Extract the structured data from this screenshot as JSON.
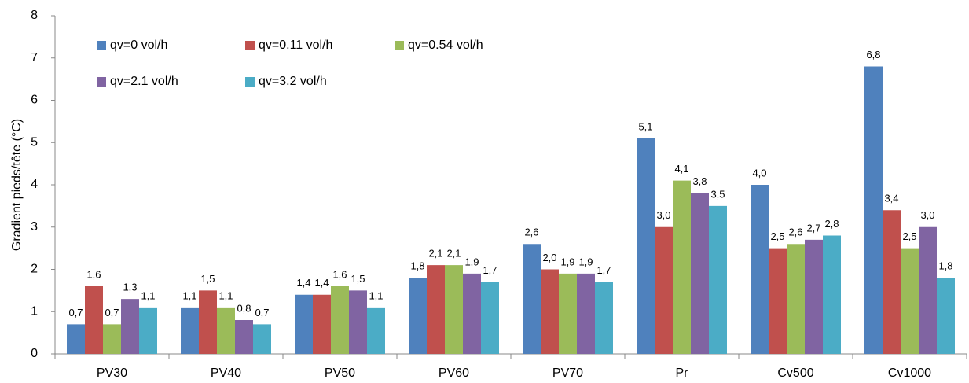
{
  "chart_data": {
    "type": "bar",
    "ylabel": "Gradient pieds/tête (°C)",
    "categories": [
      "PV30",
      "PV40",
      "PV50",
      "PV60",
      "PV70",
      "Pr",
      "Cv500",
      "Cv1000"
    ],
    "series": [
      {
        "name": "qv=0 vol/h",
        "color": "#4f81bd",
        "values": [
          0.7,
          1.1,
          1.4,
          1.8,
          2.6,
          5.1,
          4.0,
          6.8
        ],
        "value_labels": [
          "0,7",
          "1,1",
          "1,4",
          "1,8",
          "2,6",
          "5,1",
          "4,0",
          "6,8"
        ]
      },
      {
        "name": "qv=0.11 vol/h",
        "color": "#c0504d",
        "values": [
          1.6,
          1.5,
          1.4,
          2.1,
          2.0,
          3.0,
          2.5,
          3.4
        ],
        "value_labels": [
          "1,6",
          "1,5",
          "1,4",
          "2,1",
          "2,0",
          "3,0",
          "2,5",
          "3,4"
        ]
      },
      {
        "name": "qv=0.54 vol/h",
        "color": "#9bbb59",
        "values": [
          0.7,
          1.1,
          1.6,
          2.1,
          1.9,
          4.1,
          2.6,
          2.5
        ],
        "value_labels": [
          "0,7",
          "1,1",
          "1,6",
          "2,1",
          "1,9",
          "4,1",
          "2,6",
          "2,5"
        ]
      },
      {
        "name": "qv=2.1 vol/h",
        "color": "#8064a2",
        "values": [
          1.3,
          0.8,
          1.5,
          1.9,
          1.9,
          3.8,
          2.7,
          3.0
        ],
        "value_labels": [
          "1,3",
          "0,8",
          "1,5",
          "1,9",
          "1,9",
          "3,8",
          "2,7",
          "3,0"
        ]
      },
      {
        "name": "qv=3.2 vol/h",
        "color": "#4bacc6",
        "values": [
          1.1,
          0.7,
          1.1,
          1.7,
          1.7,
          3.5,
          2.8,
          1.8
        ],
        "value_labels": [
          "1,1",
          "0,7",
          "1,1",
          "1,7",
          "1,7",
          "3,5",
          "2,8",
          "1,8"
        ]
      }
    ],
    "ylim": [
      0,
      8
    ],
    "yticks": [
      0,
      1,
      2,
      3,
      4,
      5,
      6,
      7,
      8
    ],
    "grid": false,
    "legend": "upper left"
  }
}
